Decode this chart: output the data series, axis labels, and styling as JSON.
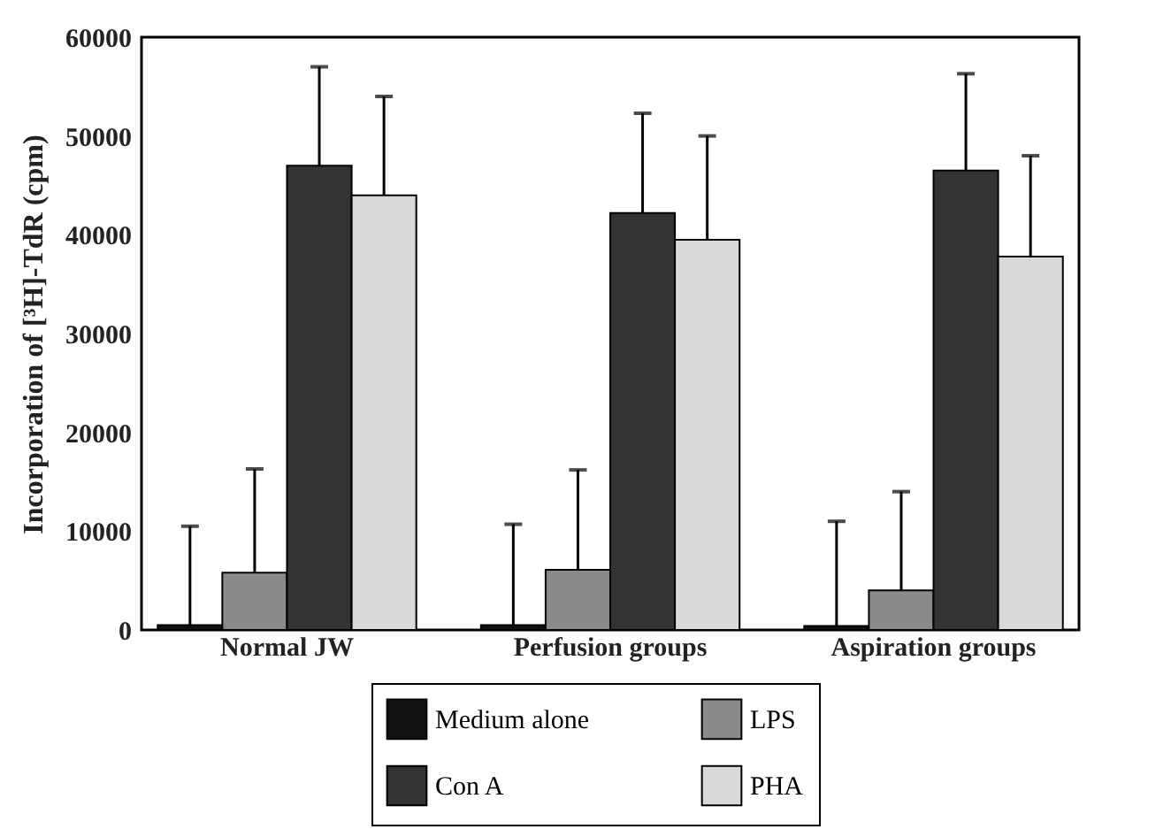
{
  "chart_data": {
    "type": "bar",
    "ylabel": "Incorporation of [³H]-TdR (cpm)",
    "categories": [
      "Normal JW",
      "Perfusion groups",
      "Aspiration groups"
    ],
    "series": [
      {
        "name": "Medium alone",
        "color": "#111111",
        "values": [
          500,
          500,
          400
        ],
        "errors": [
          [
            500,
            10500
          ],
          [
            500,
            10700
          ],
          [
            400,
            11000
          ]
        ]
      },
      {
        "name": "LPS",
        "color": "#8a8a8a",
        "values": [
          5800,
          6100,
          4000
        ],
        "errors": [
          [
            5800,
            16300
          ],
          [
            6100,
            16200
          ],
          [
            4000,
            14000
          ]
        ]
      },
      {
        "name": "Con A",
        "color": "#333333",
        "values": [
          47000,
          42200,
          46500
        ],
        "errors": [
          [
            47000,
            57000
          ],
          [
            42200,
            52300
          ],
          [
            46500,
            56300
          ]
        ]
      },
      {
        "name": "PHA",
        "color": "#d9d9d9",
        "values": [
          44000,
          39500,
          37800
        ],
        "errors": [
          [
            44000,
            54000
          ],
          [
            39500,
            50000
          ],
          [
            37800,
            48000
          ]
        ]
      }
    ],
    "ylim": [
      0,
      60000
    ],
    "yticks": [
      0,
      10000,
      20000,
      30000,
      40000,
      50000,
      60000
    ],
    "grid": false,
    "legend": "bottom"
  }
}
